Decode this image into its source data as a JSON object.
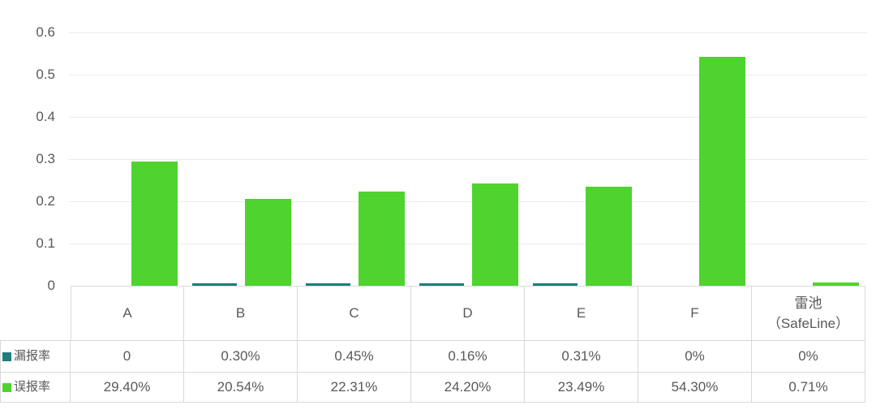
{
  "theme": {
    "background": "#FFFFFF",
    "text_color": "#595959",
    "gridline_color": "#EBEBEB",
    "table_border_color": "#D9D9D9"
  },
  "chart_data": {
    "type": "bar",
    "title": "",
    "xlabel": "",
    "ylabel": "",
    "grid": true,
    "ylim": [
      0,
      0.6
    ],
    "y_tick_step": 0.1,
    "y_ticks": [
      "0",
      "0.1",
      "0.2",
      "0.3",
      "0.4",
      "0.5",
      "0.6"
    ],
    "legend_position": "table-row-headers",
    "categories": [
      "A",
      "B",
      "C",
      "D",
      "E",
      "F",
      "雷池（SafeLine）"
    ],
    "category_ids": [
      "a",
      "b",
      "c",
      "d",
      "e",
      "f",
      "safeline"
    ],
    "category_lines": [
      [
        "A"
      ],
      [
        "B"
      ],
      [
        "C"
      ],
      [
        "D"
      ],
      [
        "E"
      ],
      [
        "F"
      ],
      [
        "雷池",
        "（SafeLine）"
      ]
    ],
    "series": [
      {
        "key": "miss-rate",
        "name": "漏报率",
        "color": "#1C7E7D",
        "values": [
          0,
          0.003,
          0.0045,
          0.0016,
          0.0031,
          0,
          0
        ],
        "labels": [
          "0",
          "0.30%",
          "0.45%",
          "0.16%",
          "0.31%",
          "0%",
          "0%"
        ]
      },
      {
        "key": "false-positive-rate",
        "name": "误报率",
        "color": "#4FD32F",
        "values": [
          0.294,
          0.2054,
          0.2231,
          0.242,
          0.2349,
          0.543,
          0.0071
        ],
        "labels": [
          "29.40%",
          "20.54%",
          "22.31%",
          "24.20%",
          "23.49%",
          "54.30%",
          "0.71%"
        ]
      }
    ]
  }
}
